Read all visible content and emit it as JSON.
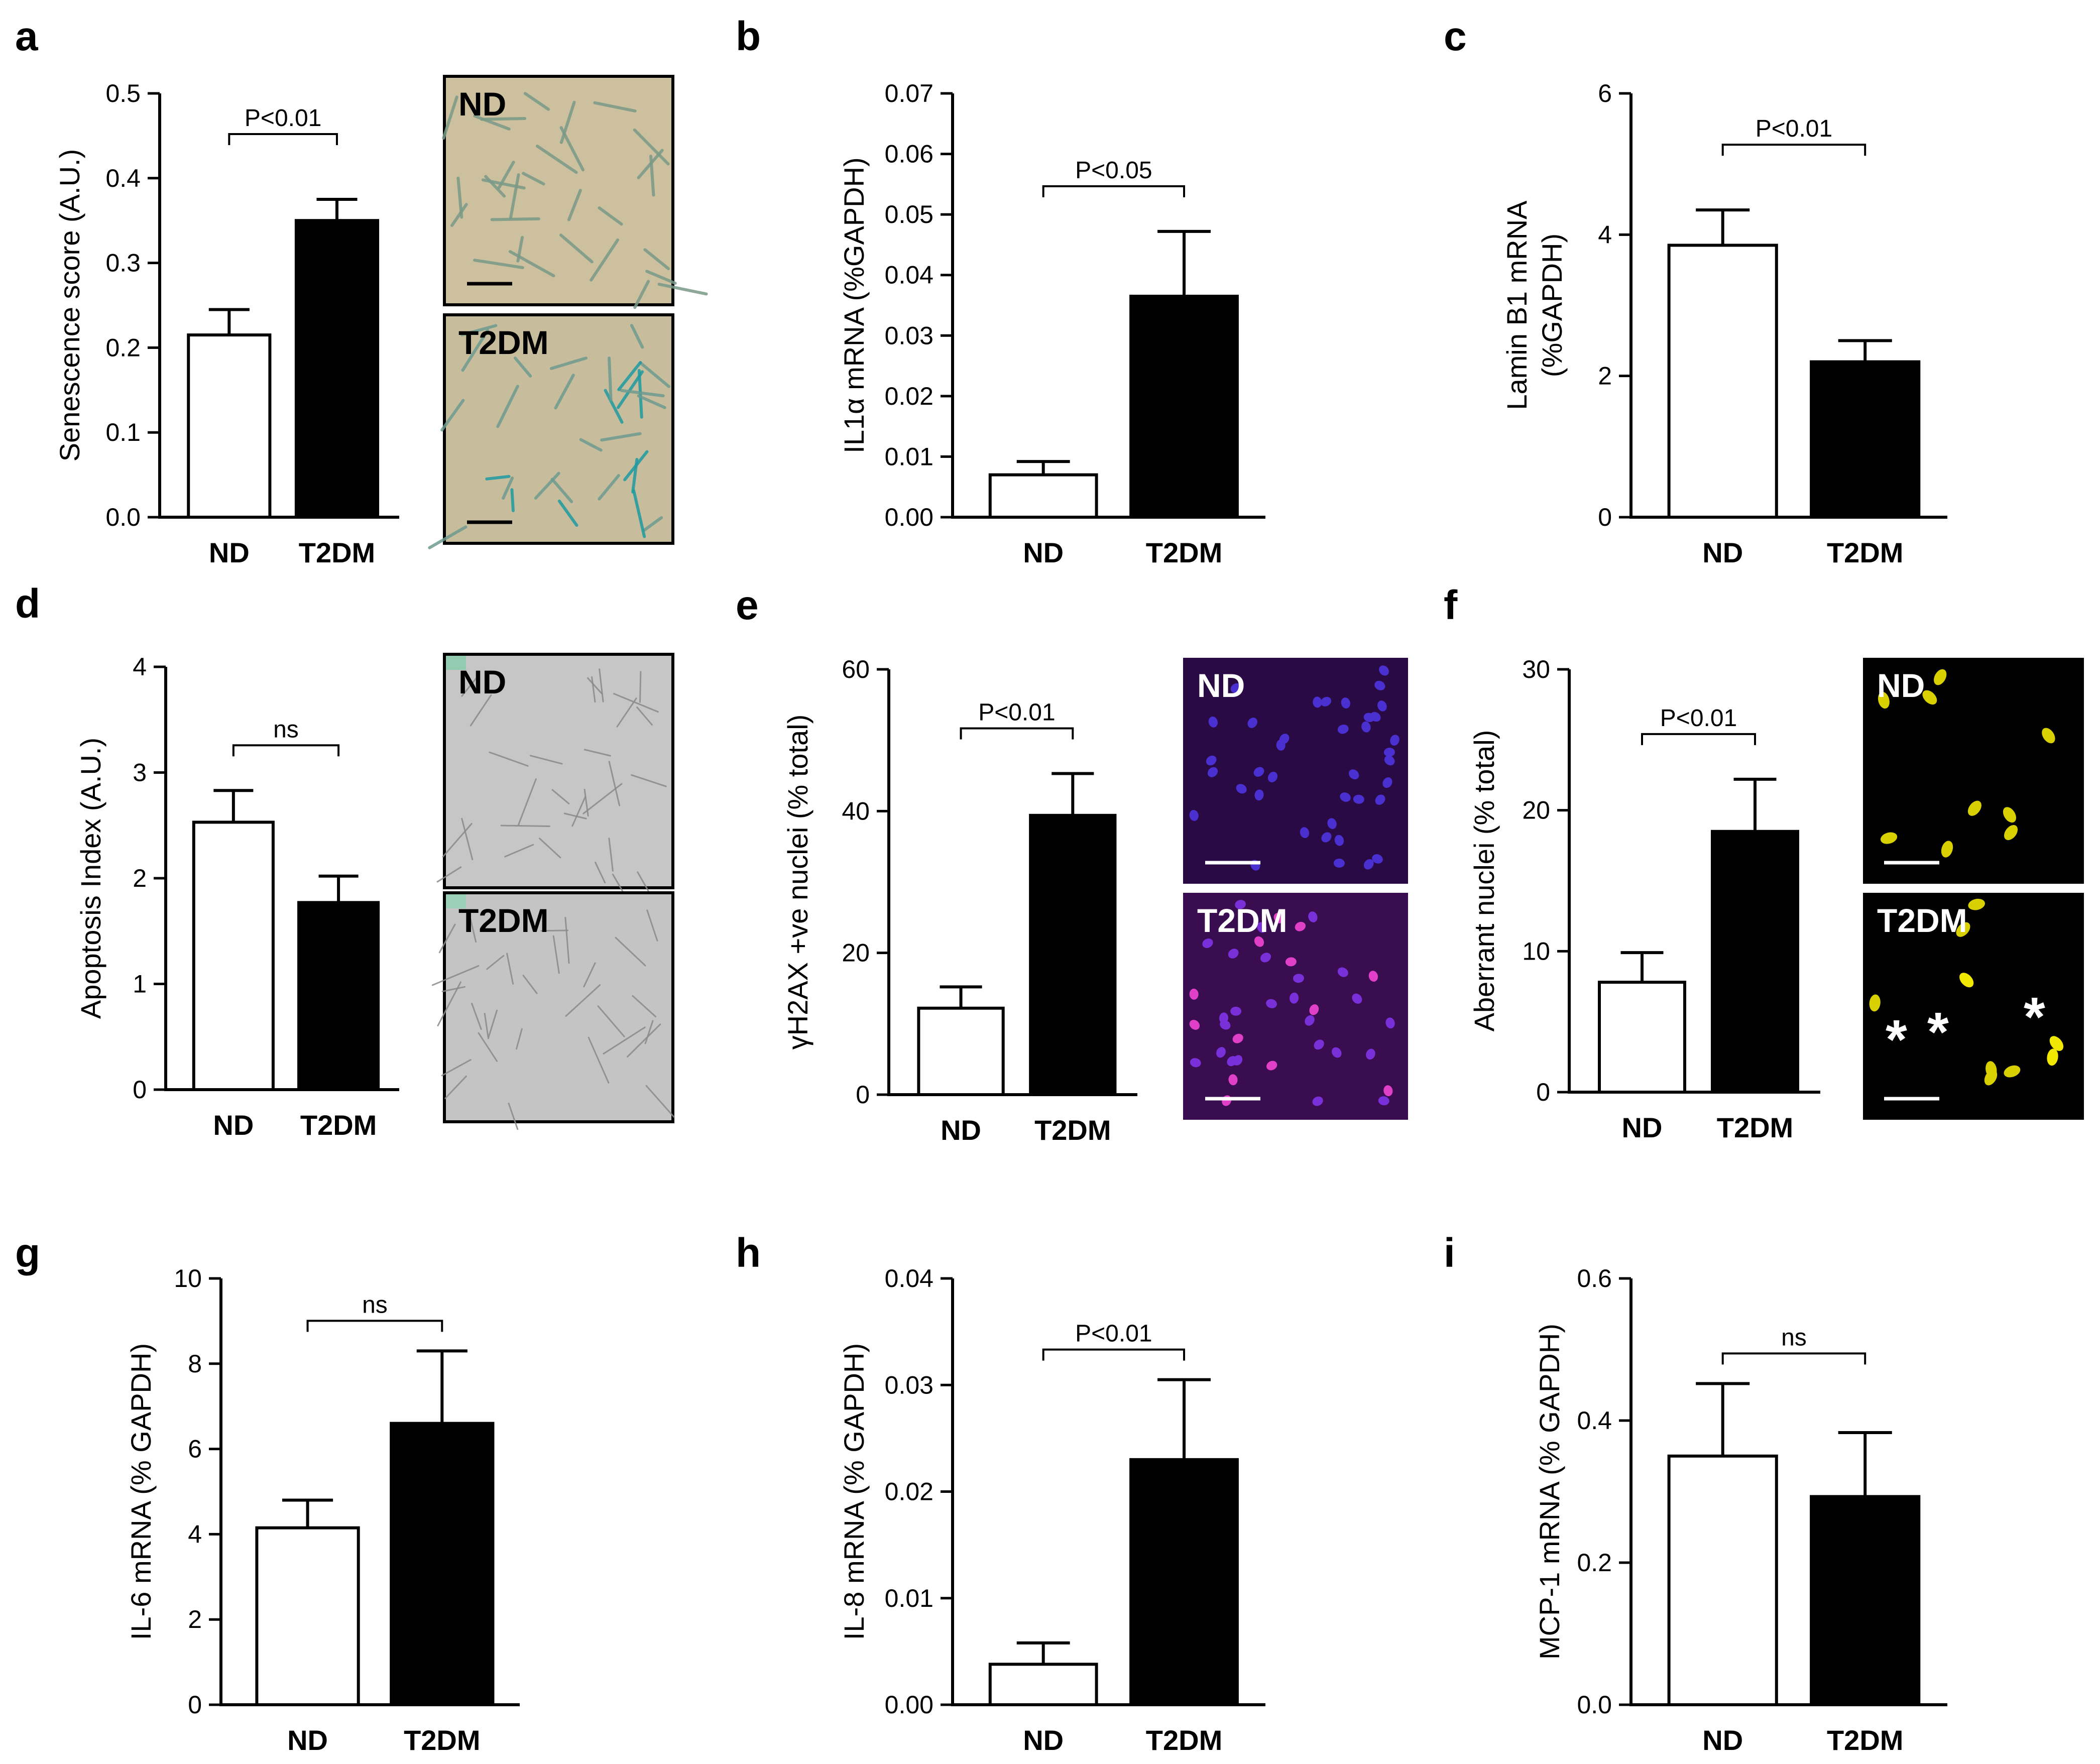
{
  "figure": {
    "categories": [
      "ND",
      "T2DM"
    ],
    "bar_colors": [
      "#ffffff",
      "#000000"
    ],
    "axis_color": "#000000"
  },
  "chart_data": [
    {
      "type": "bar",
      "panel": "a",
      "ylabel": "Senescence score (A.U.)",
      "categories": [
        "ND",
        "T2DM"
      ],
      "values": [
        0.215,
        0.35
      ],
      "errors": [
        0.03,
        0.025
      ],
      "ylim": [
        0,
        0.5
      ],
      "yticks": [
        "0.0",
        "0.1",
        "0.2",
        "0.3",
        "0.4",
        "0.5"
      ],
      "significance": "P<0.01",
      "micrographs": [
        {
          "label": "ND",
          "background": "#cdc09e",
          "cells": "#7a9a88",
          "stain": "#2a9a8a"
        },
        {
          "label": "T2DM",
          "background": "#c7bd9c",
          "cells": "#6e9c90",
          "stain": "#1f9aa0"
        }
      ]
    },
    {
      "type": "bar",
      "panel": "b",
      "ylabel": "IL1α mRNA (%GAPDH)",
      "categories": [
        "ND",
        "T2DM"
      ],
      "values": [
        0.007,
        0.0365
      ],
      "errors": [
        0.0022,
        0.0107
      ],
      "ylim": [
        0,
        0.07
      ],
      "yticks": [
        "0.00",
        "0.01",
        "0.02",
        "0.03",
        "0.04",
        "0.05",
        "0.06",
        "0.07"
      ],
      "significance": "P<0.05"
    },
    {
      "type": "bar",
      "panel": "c",
      "ylabel": "Lamin B1 mRNA",
      "ylabel2": "(%GAPDH)",
      "categories": [
        "ND",
        "T2DM"
      ],
      "values": [
        3.85,
        2.2
      ],
      "errors": [
        0.5,
        0.3
      ],
      "ylim": [
        0,
        6
      ],
      "yticks": [
        "0",
        "2",
        "4",
        "6"
      ],
      "significance": "P<0.01"
    },
    {
      "type": "bar",
      "panel": "d",
      "ylabel": "Apoptosis Index (A.U.)",
      "categories": [
        "ND",
        "T2DM"
      ],
      "values": [
        2.53,
        1.77
      ],
      "errors": [
        0.3,
        0.25
      ],
      "ylim": [
        0,
        4
      ],
      "yticks": [
        "0",
        "1",
        "2",
        "3",
        "4"
      ],
      "significance": "ns",
      "micrographs": [
        {
          "label": "ND",
          "background": "#c6c6c6",
          "cells": "#8a8a8a",
          "stain": "#6fcfa0"
        },
        {
          "label": "T2DM",
          "background": "#c4c4c4",
          "cells": "#8a8a8a",
          "stain": "#7fd8b0"
        }
      ]
    },
    {
      "type": "bar",
      "panel": "e",
      "ylabel": "γH2AX +ve nuclei (% total)",
      "categories": [
        "ND",
        "T2DM"
      ],
      "values": [
        12.2,
        39.4
      ],
      "errors": [
        3.0,
        5.9
      ],
      "ylim": [
        0,
        60
      ],
      "yticks": [
        "0",
        "20",
        "40",
        "60"
      ],
      "significance": "P<0.01",
      "micrographs": [
        {
          "label": "ND",
          "background": "#2a0a45",
          "cells": "#4a30d0",
          "stain": "#5535e0"
        },
        {
          "label": "T2DM",
          "background": "#3a0c50",
          "cells": "#7a30d8",
          "stain": "#e040c8"
        }
      ]
    },
    {
      "type": "bar",
      "panel": "f",
      "ylabel": "Aberrant nuclei (% total)",
      "categories": [
        "ND",
        "T2DM"
      ],
      "values": [
        7.8,
        18.5
      ],
      "errors": [
        2.1,
        3.7
      ],
      "ylim": [
        0,
        30
      ],
      "yticks": [
        "0",
        "10",
        "20",
        "30"
      ],
      "significance": "P<0.01",
      "micrographs": [
        {
          "label": "ND",
          "background": "#000000",
          "cells": "#d8d000",
          "stain": "#f0e800"
        },
        {
          "label": "T2DM",
          "background": "#000000",
          "cells": "#d8d000",
          "stain": "#f0e800"
        }
      ],
      "asterisk": "*"
    },
    {
      "type": "bar",
      "panel": "g",
      "ylabel": "IL-6 mRNA (% GAPDH)",
      "categories": [
        "ND",
        "T2DM"
      ],
      "values": [
        4.15,
        6.6
      ],
      "errors": [
        0.65,
        1.7
      ],
      "ylim": [
        0,
        10
      ],
      "yticks": [
        "0",
        "2",
        "4",
        "6",
        "8",
        "10"
      ],
      "significance": "ns"
    },
    {
      "type": "bar",
      "panel": "h",
      "ylabel": "IL-8 mRNA (% GAPDH)",
      "categories": [
        "ND",
        "T2DM"
      ],
      "values": [
        0.0038,
        0.023
      ],
      "errors": [
        0.002,
        0.0075
      ],
      "ylim": [
        0,
        0.04
      ],
      "yticks": [
        "0.00",
        "0.01",
        "0.02",
        "0.03",
        "0.04"
      ],
      "significance": "P<0.01"
    },
    {
      "type": "bar",
      "panel": "i",
      "ylabel": "MCP-1 mRNA (% GAPDH)",
      "categories": [
        "ND",
        "T2DM"
      ],
      "values": [
        0.35,
        0.293
      ],
      "errors": [
        0.102,
        0.09
      ],
      "ylim": [
        0,
        0.6
      ],
      "yticks": [
        "0.0",
        "0.2",
        "0.4",
        "0.6"
      ],
      "significance": "ns"
    }
  ]
}
